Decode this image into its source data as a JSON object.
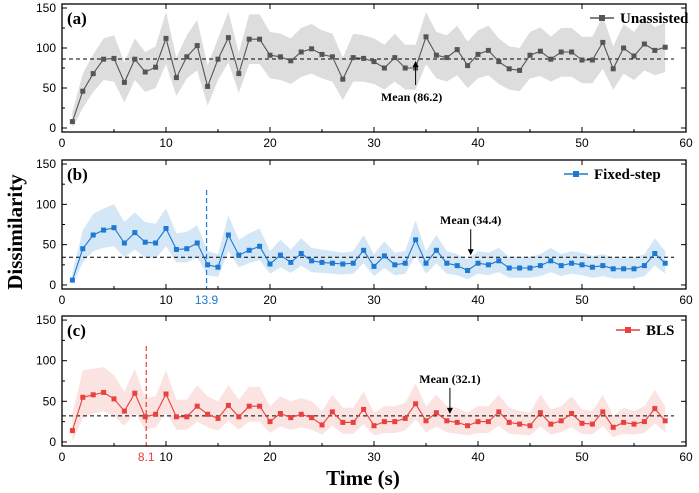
{
  "chart_data": {
    "type": "line",
    "shared": {
      "xlabel": "Time (s)",
      "ylabel": "Dissimilarity",
      "xlim": [
        0,
        60
      ],
      "ylim": [
        -5,
        155
      ],
      "xticks": [
        0,
        10,
        20,
        30,
        40,
        50,
        60
      ],
      "yticks": [
        0,
        50,
        100,
        150
      ]
    },
    "panels": [
      {
        "label": "(a)",
        "legend": "Unassisted",
        "color": "#555555",
        "band_color": "#bbbbbb",
        "marker": "square",
        "mean": 86.2,
        "mean_label": "Mean (86.2)",
        "mean_arrow_x": 34,
        "x": [
          1,
          2,
          3,
          4,
          5,
          6,
          7,
          8,
          9,
          10,
          11,
          12,
          13,
          14,
          15,
          16,
          17,
          18,
          19,
          20,
          21,
          22,
          23,
          24,
          25,
          26,
          27,
          28,
          29,
          30,
          31,
          32,
          33,
          34,
          35,
          36,
          37,
          38,
          39,
          40,
          41,
          42,
          43,
          44,
          45,
          46,
          47,
          48,
          49,
          50,
          51,
          52,
          53,
          54,
          55,
          56,
          57,
          58
        ],
        "values": [
          8,
          46,
          68,
          86,
          87,
          57,
          86,
          70,
          76,
          112,
          63,
          89,
          103,
          52,
          86,
          113,
          68,
          111,
          111,
          91,
          89,
          84,
          95,
          99,
          92,
          89,
          61,
          88,
          87,
          83,
          75,
          88,
          75,
          75,
          114,
          91,
          88,
          98,
          78,
          92,
          97,
          83,
          74,
          72,
          91,
          96,
          86,
          95,
          95,
          85,
          85,
          107,
          74,
          100,
          90,
          105,
          97,
          101
        ],
        "lower": [
          0,
          25,
          45,
          60,
          58,
          32,
          60,
          45,
          50,
          80,
          40,
          62,
          72,
          28,
          60,
          82,
          44,
          80,
          80,
          62,
          60,
          55,
          64,
          68,
          62,
          58,
          35,
          58,
          58,
          55,
          48,
          58,
          48,
          48,
          80,
          62,
          58,
          66,
          50,
          62,
          66,
          55,
          48,
          46,
          62,
          65,
          58,
          64,
          64,
          56,
          56,
          74,
          48,
          68,
          60,
          72,
          66,
          70
        ],
        "upper": [
          20,
          68,
          92,
          112,
          116,
          82,
          112,
          95,
          102,
          145,
          88,
          116,
          135,
          78,
          112,
          145,
          94,
          142,
          142,
          120,
          118,
          112,
          125,
          130,
          122,
          118,
          88,
          118,
          116,
          112,
          104,
          118,
          104,
          104,
          145,
          120,
          116,
          128,
          108,
          122,
          128,
          112,
          102,
          100,
          120,
          126,
          114,
          125,
          125,
          114,
          114,
          140,
          102,
          130,
          120,
          138,
          126,
          132
        ]
      },
      {
        "label": "(b)",
        "legend": "Fixed-step",
        "color": "#1f78d1",
        "band_color": "#a8d0ee",
        "marker": "square",
        "mean": 34.4,
        "mean_label": "Mean (34.4)",
        "mean_arrow_x": 39.3,
        "vline_x": 13.9,
        "vline_label": "13.9",
        "x": [
          1,
          2,
          3,
          4,
          5,
          6,
          7,
          8,
          9,
          10,
          11,
          12,
          13,
          14,
          15,
          16,
          17,
          18,
          19,
          20,
          21,
          22,
          23,
          24,
          25,
          26,
          27,
          28,
          29,
          30,
          31,
          32,
          33,
          34,
          35,
          36,
          37,
          38,
          39,
          40,
          41,
          42,
          43,
          44,
          45,
          46,
          47,
          48,
          49,
          50,
          51,
          52,
          53,
          54,
          55,
          56,
          57,
          58
        ],
        "values": [
          6,
          45,
          62,
          68,
          71,
          52,
          65,
          53,
          52,
          70,
          44,
          45,
          52,
          25,
          22,
          62,
          37,
          43,
          48,
          26,
          37,
          28,
          39,
          30,
          28,
          27,
          26,
          27,
          43,
          23,
          36,
          25,
          27,
          56,
          27,
          43,
          27,
          24,
          18,
          27,
          25,
          30,
          21,
          21,
          21,
          24,
          30,
          24,
          27,
          25,
          22,
          24,
          20,
          20,
          20,
          24,
          39,
          27
        ],
        "lower": [
          0,
          28,
          42,
          46,
          48,
          34,
          44,
          34,
          33,
          48,
          28,
          28,
          34,
          12,
          10,
          42,
          22,
          27,
          31,
          14,
          22,
          15,
          24,
          16,
          15,
          14,
          13,
          14,
          27,
          11,
          21,
          12,
          14,
          36,
          14,
          27,
          14,
          12,
          7,
          14,
          12,
          16,
          9,
          9,
          9,
          11,
          16,
          11,
          14,
          12,
          9,
          11,
          8,
          8,
          8,
          11,
          24,
          14
        ],
        "upper": [
          15,
          68,
          88,
          95,
          100,
          78,
          90,
          78,
          76,
          95,
          64,
          66,
          74,
          42,
          38,
          86,
          56,
          64,
          70,
          42,
          56,
          44,
          58,
          46,
          44,
          42,
          40,
          42,
          62,
          38,
          54,
          40,
          42,
          80,
          42,
          62,
          42,
          38,
          32,
          42,
          40,
          46,
          35,
          35,
          35,
          38,
          46,
          38,
          42,
          40,
          36,
          38,
          34,
          34,
          34,
          38,
          58,
          42
        ]
      },
      {
        "label": "(c)",
        "legend": "BLS",
        "color": "#e8413e",
        "band_color": "#f8c7c4",
        "marker": "square",
        "mean": 32.1,
        "mean_label": "Mean (32.1)",
        "mean_arrow_x": 37.3,
        "vline_x": 8.1,
        "vline_label": "8.1",
        "x": [
          1,
          2,
          3,
          4,
          5,
          6,
          7,
          8,
          9,
          10,
          11,
          12,
          13,
          14,
          15,
          16,
          17,
          18,
          19,
          20,
          21,
          22,
          23,
          24,
          25,
          26,
          27,
          28,
          29,
          30,
          31,
          32,
          33,
          34,
          35,
          36,
          37,
          38,
          39,
          40,
          41,
          42,
          43,
          44,
          45,
          46,
          47,
          48,
          49,
          50,
          51,
          52,
          53,
          54,
          55,
          56,
          57,
          58
        ],
        "values": [
          14,
          55,
          58,
          61,
          53,
          38,
          60,
          31,
          34,
          59,
          31,
          31,
          44,
          34,
          29,
          45,
          31,
          44,
          44,
          25,
          35,
          30,
          34,
          30,
          21,
          37,
          24,
          24,
          40,
          20,
          25,
          25,
          29,
          47,
          26,
          36,
          26,
          24,
          20,
          25,
          25,
          37,
          24,
          22,
          20,
          36,
          22,
          26,
          35,
          23,
          22,
          37,
          18,
          24,
          22,
          25,
          41,
          26
        ],
        "lower": [
          0,
          30,
          35,
          38,
          32,
          20,
          36,
          15,
          18,
          36,
          15,
          15,
          25,
          18,
          14,
          26,
          15,
          25,
          25,
          11,
          19,
          15,
          18,
          15,
          9,
          20,
          10,
          10,
          22,
          8,
          11,
          11,
          14,
          28,
          12,
          19,
          12,
          10,
          8,
          11,
          11,
          20,
          10,
          9,
          8,
          19,
          9,
          12,
          18,
          10,
          9,
          20,
          6,
          10,
          9,
          11,
          23,
          12
        ],
        "upper": [
          35,
          88,
          90,
          92,
          82,
          62,
          90,
          54,
          56,
          88,
          52,
          52,
          70,
          56,
          50,
          70,
          52,
          68,
          68,
          44,
          56,
          50,
          54,
          50,
          38,
          58,
          42,
          42,
          62,
          36,
          44,
          44,
          48,
          72,
          44,
          58,
          44,
          42,
          36,
          44,
          44,
          58,
          42,
          38,
          36,
          58,
          40,
          44,
          56,
          40,
          38,
          58,
          32,
          42,
          38,
          44,
          64,
          44
        ]
      }
    ]
  }
}
